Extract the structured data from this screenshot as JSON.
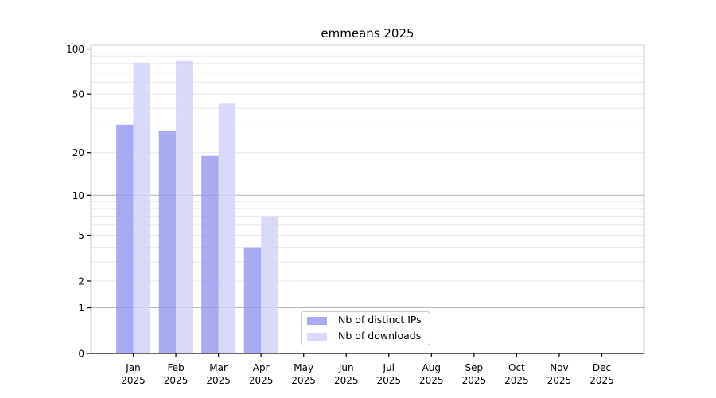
{
  "chart_data": {
    "type": "bar",
    "title": "emmeans 2025",
    "categories": [
      "Jan",
      "Feb",
      "Mar",
      "Apr",
      "May",
      "Jun",
      "Jul",
      "Aug",
      "Sep",
      "Oct",
      "Nov",
      "Dec"
    ],
    "x_tick_year": "2025",
    "series": [
      {
        "name": "Nb of distinct IPs",
        "color": "#9595f0",
        "values": [
          31,
          28,
          19,
          4,
          0,
          0,
          0,
          0,
          0,
          0,
          0,
          0
        ]
      },
      {
        "name": "Nb of downloads",
        "color": "#d0d0f6",
        "values": [
          81,
          83,
          43,
          7,
          0,
          0,
          0,
          0,
          0,
          0,
          0,
          0
        ]
      }
    ],
    "yscale": "log10(1+v)",
    "y_ticks": [
      100,
      50,
      20,
      10,
      5,
      2,
      1,
      0
    ],
    "y_max": 107,
    "ylim": [
      0,
      107
    ],
    "grid": {
      "major_at": [
        1,
        10,
        100
      ],
      "minor_at": [
        2,
        3,
        4,
        5,
        6,
        7,
        8,
        9,
        20,
        30,
        40,
        50,
        60,
        70,
        80,
        90
      ],
      "major_color": "#b6b6b6",
      "minor_color": "#e8e8ee"
    },
    "legend_position": "bottom-center",
    "axis_color": "#000000",
    "bar_opacity": 0.8
  }
}
